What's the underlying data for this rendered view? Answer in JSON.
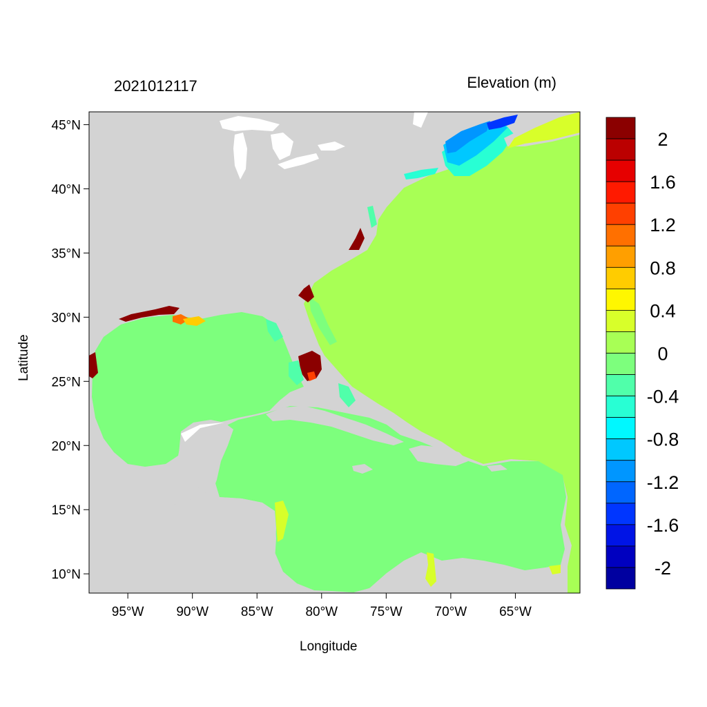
{
  "header": {
    "timestamp": "2021012117",
    "variable": "Elevation (m)"
  },
  "axes": {
    "xlabel": "Longitude",
    "ylabel": "Latitude",
    "x_ticks": [
      "95°W",
      "90°W",
      "85°W",
      "80°W",
      "75°W",
      "70°W",
      "65°W"
    ],
    "x_tick_values": [
      -95,
      -90,
      -85,
      -80,
      -75,
      -70,
      -65
    ],
    "y_ticks": [
      "45°N",
      "40°N",
      "35°N",
      "30°N",
      "25°N",
      "20°N",
      "15°N",
      "10°N"
    ],
    "y_tick_values": [
      45,
      40,
      35,
      30,
      25,
      20,
      15,
      10
    ],
    "lon_range": [
      -98,
      -60
    ],
    "lat_range": [
      8.5,
      46
    ]
  },
  "colorbar": {
    "labels": [
      "2",
      "1.6",
      "1.2",
      "0.8",
      "0.4",
      "0",
      "-0.4",
      "-0.8",
      "-1.2",
      "-1.6",
      "-2"
    ],
    "colors": [
      "#8b0000",
      "#bb0000",
      "#e60000",
      "#ff1a00",
      "#ff4000",
      "#ff7000",
      "#ff9f00",
      "#ffcc00",
      "#fff700",
      "#d8ff2a",
      "#a8ff55",
      "#7dff7d",
      "#50ffaa",
      "#28ffd4",
      "#00f8ff",
      "#00c8ff",
      "#0096ff",
      "#0066ff",
      "#0036ff",
      "#0014e6",
      "#0000c0",
      "#0000a0"
    ]
  },
  "map_colors": {
    "land": "#d3d3d3",
    "water_inland": "#ffffff",
    "atlantic": "#a8ff55",
    "gulf_caribbean": "#7dff7d"
  }
}
